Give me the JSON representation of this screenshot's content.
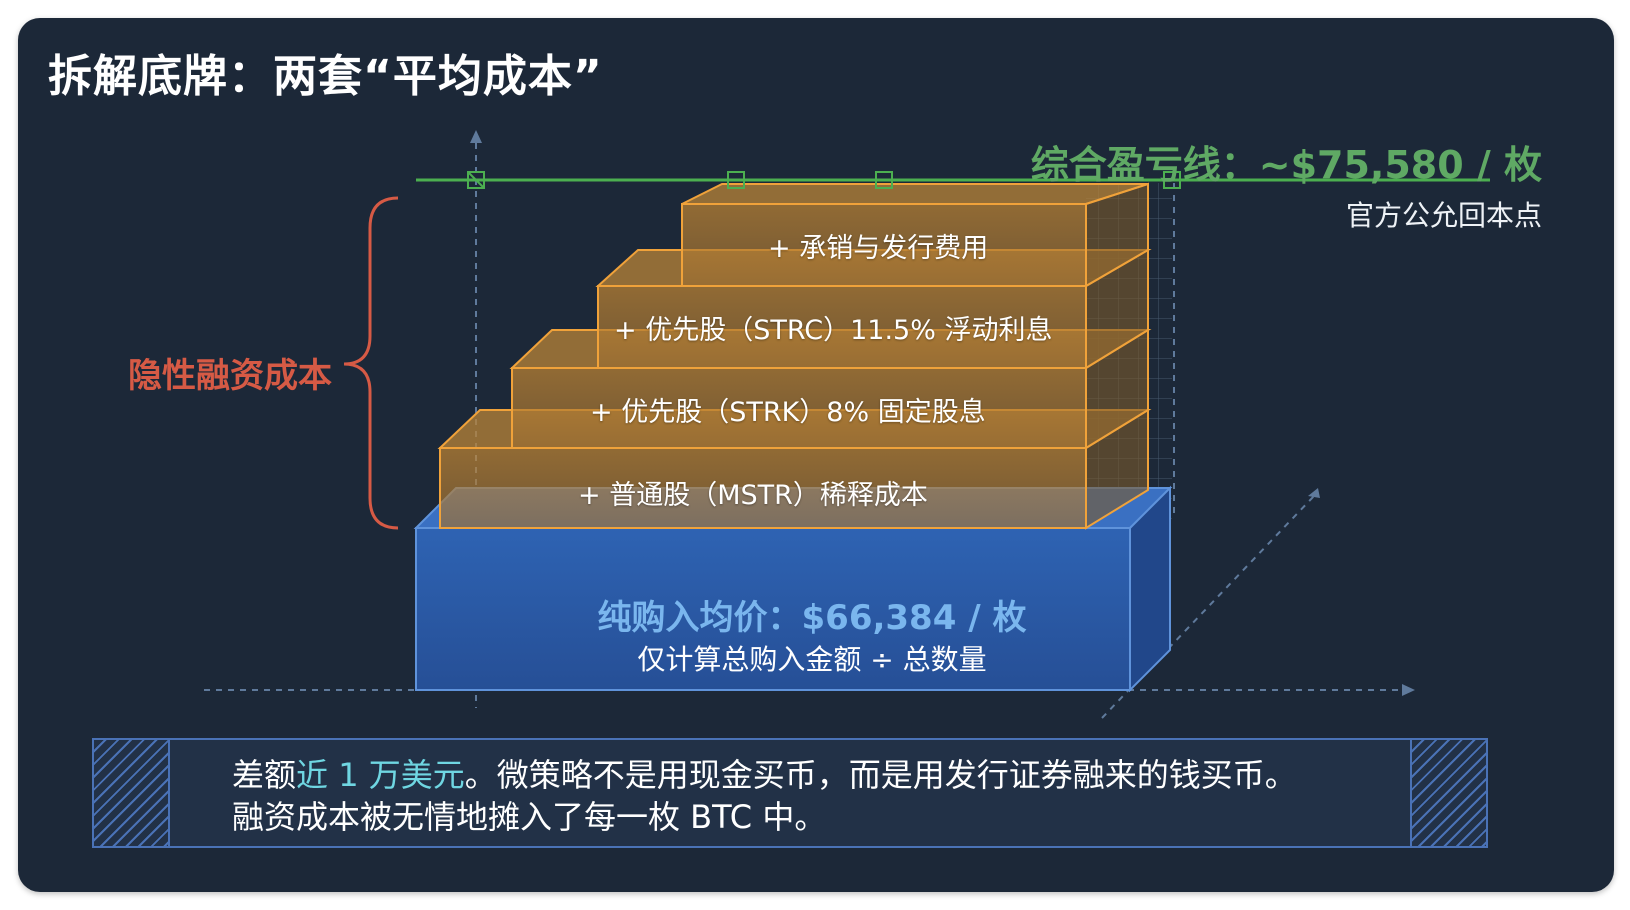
{
  "title": "拆解底牌：两套“平均成本”",
  "breakeven": {
    "label": "综合盈亏线：~$75,580 / 枚",
    "sublabel": "官方公允回本点"
  },
  "hidden_cost_label": "隐性融资成本",
  "layers": [
    {
      "label": "+ 承销与发行费用"
    },
    {
      "label": "+ 优先股（STRC）11.5% 浮动利息"
    },
    {
      "label": "+ 优先股（STRK）8% 固定股息"
    },
    {
      "label": "+ 普通股（MSTR）稀释成本"
    }
  ],
  "base": {
    "title": "纯购入均价：$66,384 / 枚",
    "subtitle": "仅计算总购入金额 ÷ 总数量"
  },
  "note": {
    "line1_prefix": "差额",
    "line1_highlight": "近 1 万美元",
    "line1_suffix": "。微策略不是用现金买币，而是用发行证券融来的钱买币。",
    "line2": "融资成本被无情地摊入了每一枚 BTC 中。"
  },
  "colors": {
    "background": "#1c2838",
    "breakeven_green": "#5fa964",
    "hidden_cost_red": "#d65a45",
    "layer_orange": "#f0a23a",
    "base_blue": "#2a5fb0",
    "highlight_cyan": "#6fd6e2"
  }
}
